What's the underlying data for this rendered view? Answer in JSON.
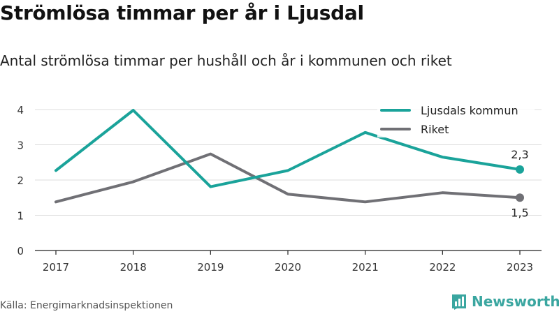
{
  "title": "Strömlösa timmar per år i Ljusdal",
  "subtitle": "Antal strömlösa timmar per hushåll och år i kommunen och riket",
  "source": "Källa: Energimarknadsinspektionen",
  "brand": {
    "name": "Newsworthy",
    "icon": "bar-chart-icon",
    "color": "#3aa6a0"
  },
  "chart_data": {
    "type": "line",
    "x": [
      "2017",
      "2018",
      "2019",
      "2020",
      "2021",
      "2022",
      "2023"
    ],
    "ylim": [
      0,
      4
    ],
    "yticks": [
      0,
      1,
      2,
      3,
      4
    ],
    "grid": true,
    "legend_position": "top-right",
    "series": [
      {
        "name": "Ljusdals kommun",
        "color": "#1aa39a",
        "values": [
          2.27,
          3.98,
          1.81,
          2.27,
          3.35,
          2.65,
          2.3
        ],
        "end_label": "2,3",
        "end_label_position": "above"
      },
      {
        "name": "Riket",
        "color": "#707075",
        "values": [
          1.38,
          1.95,
          2.74,
          1.6,
          1.38,
          1.64,
          1.5
        ],
        "end_label": "1,5",
        "end_label_position": "below"
      }
    ]
  }
}
